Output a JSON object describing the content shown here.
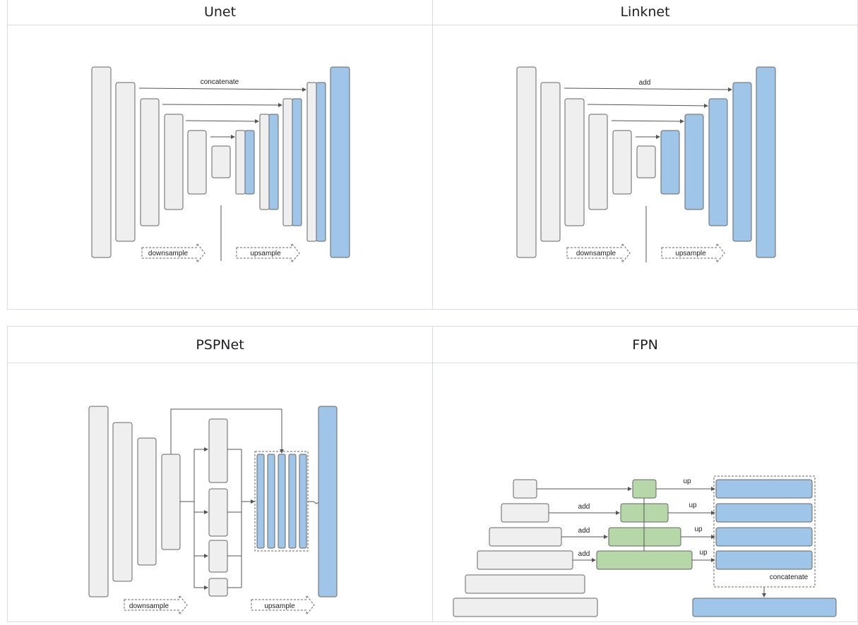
{
  "unet": {
    "title": "Unet",
    "labels": {
      "concatenate": "concatenate",
      "downsample": "downsample",
      "upsample": "upsample"
    }
  },
  "linknet": {
    "title": "Linknet",
    "labels": {
      "add": "add",
      "downsample": "downsample",
      "upsample": "upsample"
    }
  },
  "pspnet": {
    "title": "PSPNet",
    "labels": {
      "downsample": "downsample",
      "upsample": "upsample"
    }
  },
  "fpn": {
    "title": "FPN",
    "labels": {
      "up1": "up",
      "up2": "up",
      "up3": "up",
      "up4": "up",
      "add1": "add",
      "add2": "add",
      "add3": "add",
      "concatenate": "concatenate"
    }
  },
  "colors": {
    "encoder": "#efefef",
    "decoder": "#9fc5e8",
    "fpn_merge": "#b6d7a8"
  }
}
